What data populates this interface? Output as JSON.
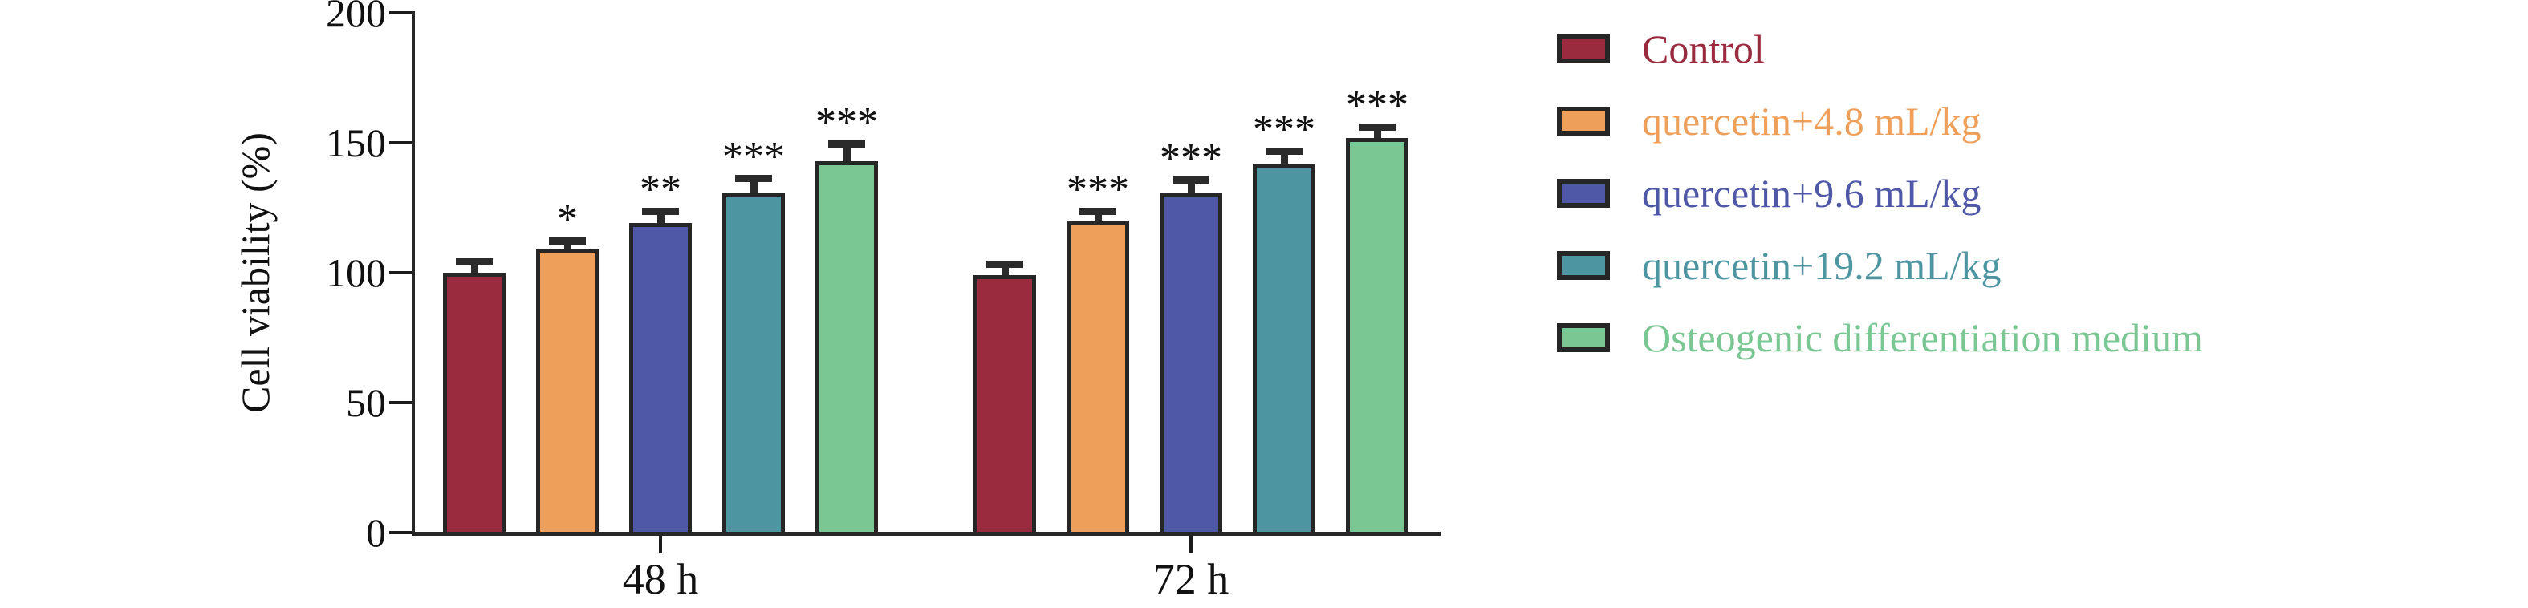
{
  "figure": {
    "background": "#ffffff",
    "axis_color": "#262626"
  },
  "chart_data": {
    "type": "bar",
    "title": "",
    "xlabel": "",
    "ylabel": "Cell viability (%)",
    "ylim": [
      0,
      200
    ],
    "yticks": [
      0,
      50,
      100,
      150,
      200
    ],
    "grid": false,
    "legend_position": "right",
    "error_bars": true,
    "categories": [
      "48 h",
      "72 h"
    ],
    "series": [
      {
        "name": "Control",
        "color": "#9a2b3f",
        "values": [
          100,
          99
        ],
        "errors": [
          4,
          4
        ],
        "significance": [
          "",
          ""
        ]
      },
      {
        "name": "quercetin+4.8 mL/kg",
        "color": "#eea05a",
        "values": [
          109,
          120
        ],
        "errors": [
          3,
          3.5
        ],
        "significance": [
          "*",
          "***"
        ]
      },
      {
        "name": "quercetin+9.6 mL/kg",
        "color": "#4f58a6",
        "values": [
          119,
          131
        ],
        "errors": [
          4.5,
          4.5
        ],
        "significance": [
          "**",
          "***"
        ]
      },
      {
        "name": "quercetin+19.2 mL/kg",
        "color": "#4e95a2",
        "values": [
          131,
          142
        ],
        "errors": [
          5,
          4.5
        ],
        "significance": [
          "***",
          "***"
        ]
      },
      {
        "name": "Osteogenic differentiation medium",
        "color": "#7bc794",
        "values": [
          143,
          152
        ],
        "errors": [
          6.5,
          4
        ],
        "significance": [
          "***",
          "***"
        ]
      }
    ]
  }
}
